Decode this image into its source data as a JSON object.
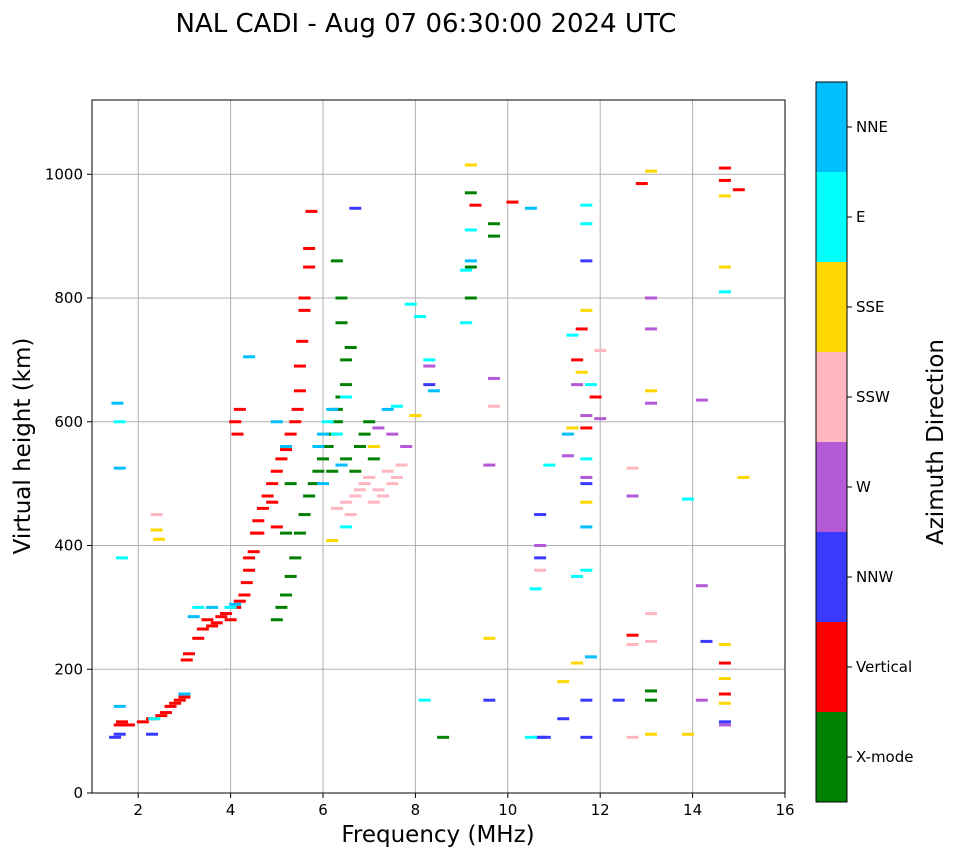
{
  "chart_data": {
    "type": "scatter",
    "title": "NAL CADI - Aug 07 06:30:00 2024 UTC",
    "xlabel": "Frequency (MHz)",
    "ylabel": "Virtual height (km)",
    "xlim": [
      1,
      16
    ],
    "ylim": [
      0,
      1120
    ],
    "xticks": [
      2,
      4,
      6,
      8,
      10,
      12,
      14,
      16
    ],
    "yticks": [
      0,
      200,
      400,
      600,
      800,
      1000
    ],
    "grid": true,
    "colorbar": {
      "label": "Azimuth Direction",
      "categories": [
        {
          "name": "X-mode",
          "color": "#008000"
        },
        {
          "name": "Vertical",
          "color": "#ff0000"
        },
        {
          "name": "NNW",
          "color": "#3a3aff"
        },
        {
          "name": "W",
          "color": "#b45ad6"
        },
        {
          "name": "SSW",
          "color": "#ffb6c1"
        },
        {
          "name": "SSE",
          "color": "#ffd700"
        },
        {
          "name": "E",
          "color": "#00ffff"
        },
        {
          "name": "NNE",
          "color": "#00bfff"
        }
      ]
    },
    "series": [
      {
        "name": "Vertical",
        "points": [
          [
            1.6,
            110
          ],
          [
            1.65,
            115
          ],
          [
            1.8,
            110
          ],
          [
            2.1,
            115
          ],
          [
            2.3,
            120
          ],
          [
            2.5,
            125
          ],
          [
            2.6,
            130
          ],
          [
            2.7,
            140
          ],
          [
            2.8,
            145
          ],
          [
            2.9,
            150
          ],
          [
            3.0,
            155
          ],
          [
            3.05,
            215
          ],
          [
            3.1,
            225
          ],
          [
            3.3,
            250
          ],
          [
            3.4,
            265
          ],
          [
            3.5,
            280
          ],
          [
            3.6,
            270
          ],
          [
            3.7,
            275
          ],
          [
            3.8,
            285
          ],
          [
            3.9,
            290
          ],
          [
            4.0,
            280
          ],
          [
            4.1,
            300
          ],
          [
            4.2,
            310
          ],
          [
            4.3,
            320
          ],
          [
            4.35,
            340
          ],
          [
            4.4,
            360
          ],
          [
            4.5,
            390
          ],
          [
            4.55,
            420
          ],
          [
            4.6,
            440
          ],
          [
            4.7,
            460
          ],
          [
            4.8,
            480
          ],
          [
            4.9,
            500
          ],
          [
            5.0,
            520
          ],
          [
            5.1,
            540
          ],
          [
            5.2,
            555
          ],
          [
            5.3,
            580
          ],
          [
            5.4,
            600
          ],
          [
            5.45,
            620
          ],
          [
            5.5,
            650
          ],
          [
            5.5,
            690
          ],
          [
            5.55,
            730
          ],
          [
            5.6,
            780
          ],
          [
            5.6,
            800
          ],
          [
            5.7,
            850
          ],
          [
            5.7,
            880
          ],
          [
            5.75,
            940
          ],
          [
            4.1,
            600
          ],
          [
            4.15,
            580
          ],
          [
            4.2,
            620
          ],
          [
            11.9,
            640
          ],
          [
            11.5,
            700
          ],
          [
            11.6,
            750
          ],
          [
            11.7,
            590
          ],
          [
            12.7,
            255
          ],
          [
            14.7,
            1010
          ],
          [
            14.7,
            990
          ],
          [
            15.0,
            975
          ],
          [
            14.7,
            210
          ],
          [
            14.7,
            160
          ],
          [
            12.9,
            985
          ],
          [
            9.3,
            950
          ],
          [
            10.1,
            955
          ],
          [
            4.6,
            420
          ],
          [
            4.4,
            380
          ],
          [
            4.9,
            470
          ],
          [
            5.0,
            430
          ]
        ]
      },
      {
        "name": "X-mode",
        "points": [
          [
            5.0,
            280
          ],
          [
            5.1,
            300
          ],
          [
            5.2,
            320
          ],
          [
            5.3,
            350
          ],
          [
            5.4,
            380
          ],
          [
            5.5,
            420
          ],
          [
            5.6,
            450
          ],
          [
            5.7,
            480
          ],
          [
            5.8,
            500
          ],
          [
            5.9,
            520
          ],
          [
            6.0,
            540
          ],
          [
            6.1,
            560
          ],
          [
            6.2,
            580
          ],
          [
            6.3,
            600
          ],
          [
            6.3,
            620
          ],
          [
            6.4,
            640
          ],
          [
            6.5,
            660
          ],
          [
            6.5,
            700
          ],
          [
            6.6,
            720
          ],
          [
            6.4,
            760
          ],
          [
            6.4,
            800
          ],
          [
            6.3,
            860
          ],
          [
            6.8,
            560
          ],
          [
            6.9,
            580
          ],
          [
            7.0,
            600
          ],
          [
            7.1,
            540
          ],
          [
            6.5,
            540
          ],
          [
            6.7,
            520
          ],
          [
            9.2,
            970
          ],
          [
            9.2,
            850
          ],
          [
            9.2,
            800
          ],
          [
            9.7,
            920
          ],
          [
            9.7,
            900
          ],
          [
            8.6,
            90
          ],
          [
            13.1,
            165
          ],
          [
            13.1,
            150
          ],
          [
            5.2,
            420
          ],
          [
            5.3,
            500
          ],
          [
            6.2,
            520
          ]
        ]
      },
      {
        "name": "NNW",
        "points": [
          [
            1.5,
            90
          ],
          [
            1.6,
            95
          ],
          [
            2.3,
            95
          ],
          [
            6.7,
            945
          ],
          [
            10.7,
            90
          ],
          [
            10.8,
            90
          ],
          [
            10.7,
            450
          ],
          [
            10.7,
            380
          ],
          [
            11.2,
            120
          ],
          [
            11.7,
            150
          ],
          [
            11.7,
            90
          ],
          [
            11.7,
            860
          ],
          [
            12.4,
            150
          ],
          [
            14.3,
            245
          ],
          [
            14.7,
            115
          ],
          [
            9.6,
            150
          ],
          [
            8.3,
            660
          ],
          [
            11.7,
            500
          ]
        ]
      },
      {
        "name": "W",
        "points": [
          [
            7.2,
            590
          ],
          [
            7.5,
            580
          ],
          [
            7.8,
            560
          ],
          [
            8.3,
            690
          ],
          [
            9.6,
            530
          ],
          [
            9.7,
            670
          ],
          [
            10.7,
            400
          ],
          [
            11.3,
            545
          ],
          [
            11.5,
            660
          ],
          [
            11.7,
            510
          ],
          [
            12.7,
            480
          ],
          [
            13.1,
            630
          ],
          [
            13.1,
            750
          ],
          [
            13.1,
            800
          ],
          [
            14.2,
            635
          ],
          [
            14.2,
            335
          ],
          [
            14.2,
            150
          ],
          [
            14.7,
            110
          ],
          [
            11.7,
            610
          ],
          [
            12.0,
            605
          ]
        ]
      },
      {
        "name": "SSW",
        "points": [
          [
            6.5,
            470
          ],
          [
            6.7,
            480
          ],
          [
            6.8,
            490
          ],
          [
            6.9,
            500
          ],
          [
            7.0,
            510
          ],
          [
            7.1,
            470
          ],
          [
            7.2,
            490
          ],
          [
            7.3,
            480
          ],
          [
            7.4,
            520
          ],
          [
            7.5,
            500
          ],
          [
            7.6,
            510
          ],
          [
            7.7,
            530
          ],
          [
            6.3,
            460
          ],
          [
            6.6,
            450
          ],
          [
            10.7,
            360
          ],
          [
            12.7,
            525
          ],
          [
            12.7,
            240
          ],
          [
            12.7,
            90
          ],
          [
            13.1,
            290
          ],
          [
            13.1,
            245
          ],
          [
            9.7,
            625
          ],
          [
            2.4,
            450
          ],
          [
            12.0,
            715
          ]
        ]
      },
      {
        "name": "SSE",
        "points": [
          [
            2.4,
            425
          ],
          [
            2.45,
            410
          ],
          [
            6.2,
            408
          ],
          [
            7.1,
            560
          ],
          [
            8.0,
            610
          ],
          [
            9.2,
            1015
          ],
          [
            9.6,
            250
          ],
          [
            11.2,
            180
          ],
          [
            11.5,
            210
          ],
          [
            11.6,
            680
          ],
          [
            11.7,
            470
          ],
          [
            11.7,
            780
          ],
          [
            13.1,
            1005
          ],
          [
            13.1,
            650
          ],
          [
            13.1,
            95
          ],
          [
            13.9,
            95
          ],
          [
            14.7,
            965
          ],
          [
            14.7,
            850
          ],
          [
            14.7,
            240
          ],
          [
            14.7,
            185
          ],
          [
            14.7,
            145
          ],
          [
            15.1,
            510
          ],
          [
            11.4,
            590
          ]
        ]
      },
      {
        "name": "E",
        "points": [
          [
            1.6,
            600
          ],
          [
            1.65,
            380
          ],
          [
            2.35,
            120
          ],
          [
            3.3,
            300
          ],
          [
            4.0,
            300
          ],
          [
            6.1,
            600
          ],
          [
            6.3,
            580
          ],
          [
            6.5,
            640
          ],
          [
            6.5,
            430
          ],
          [
            7.6,
            625
          ],
          [
            7.9,
            790
          ],
          [
            8.1,
            770
          ],
          [
            8.3,
            700
          ],
          [
            9.1,
            760
          ],
          [
            9.1,
            845
          ],
          [
            9.2,
            910
          ],
          [
            10.5,
            90
          ],
          [
            10.6,
            330
          ],
          [
            10.9,
            530
          ],
          [
            11.4,
            740
          ],
          [
            11.5,
            350
          ],
          [
            11.7,
            950
          ],
          [
            11.7,
            920
          ],
          [
            11.7,
            540
          ],
          [
            11.7,
            360
          ],
          [
            11.8,
            660
          ],
          [
            13.9,
            475
          ],
          [
            14.7,
            810
          ],
          [
            8.2,
            150
          ]
        ]
      },
      {
        "name": "NNE",
        "points": [
          [
            1.55,
            630
          ],
          [
            1.6,
            525
          ],
          [
            1.6,
            140
          ],
          [
            3.0,
            160
          ],
          [
            3.2,
            285
          ],
          [
            3.6,
            300
          ],
          [
            4.1,
            305
          ],
          [
            4.4,
            705
          ],
          [
            5.0,
            600
          ],
          [
            5.2,
            560
          ],
          [
            5.9,
            560
          ],
          [
            6.0,
            580
          ],
          [
            6.2,
            620
          ],
          [
            6.0,
            500
          ],
          [
            6.4,
            530
          ],
          [
            7.4,
            620
          ],
          [
            8.4,
            650
          ],
          [
            11.3,
            580
          ],
          [
            11.7,
            430
          ],
          [
            11.8,
            220
          ],
          [
            9.2,
            860
          ],
          [
            10.5,
            945
          ]
        ]
      }
    ]
  }
}
